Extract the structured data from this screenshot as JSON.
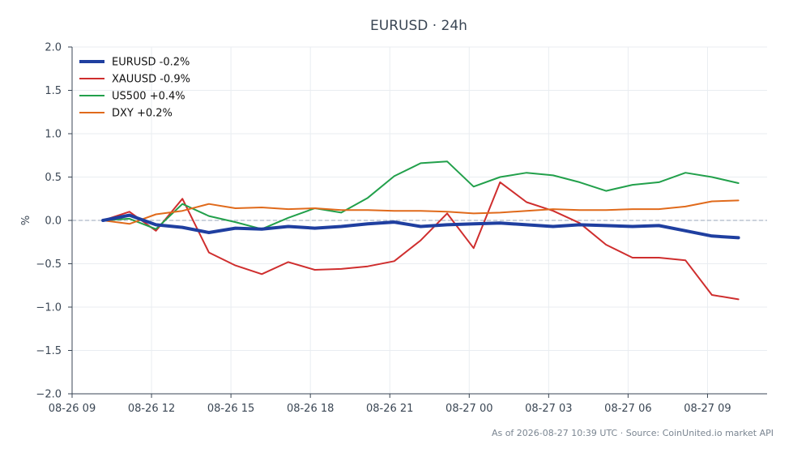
{
  "footer": "As of 2026-08-27 10:39 UTC · Source: CoinUnited.io market API",
  "chart_data": {
    "type": "line",
    "title": "EURUSD · 24h",
    "xlabel": "",
    "ylabel": "%",
    "ylim": [
      -2.0,
      2.0
    ],
    "yticks": [
      -2.0,
      -1.5,
      -1.0,
      -0.5,
      0.0,
      0.5,
      1.0,
      1.5,
      2.0
    ],
    "ytick_labels": [
      "−2.0",
      "−1.5",
      "−1.0",
      "−0.5",
      "0.0",
      "0.5",
      "1.0",
      "1.5",
      "2.0"
    ],
    "xlim": [
      "2026-08-26 09:00",
      "2026-08-27 11:15"
    ],
    "xticks": [
      "2026-08-26 09:00",
      "2026-08-26 12:00",
      "2026-08-26 15:00",
      "2026-08-26 18:00",
      "2026-08-26 21:00",
      "2026-08-27 00:00",
      "2026-08-27 03:00",
      "2026-08-27 06:00",
      "2026-08-27 09:00"
    ],
    "xtick_labels": [
      "08-26 09",
      "08-26 12",
      "08-26 15",
      "08-26 18",
      "08-26 21",
      "08-27 00",
      "08-27 03",
      "08-27 06",
      "08-27 09"
    ],
    "x": [
      "2026-08-26 10:10",
      "2026-08-26 11:10",
      "2026-08-26 12:10",
      "2026-08-26 13:10",
      "2026-08-26 14:10",
      "2026-08-26 15:10",
      "2026-08-26 16:10",
      "2026-08-26 17:10",
      "2026-08-26 18:10",
      "2026-08-26 19:10",
      "2026-08-26 20:10",
      "2026-08-26 21:10",
      "2026-08-26 22:10",
      "2026-08-26 23:10",
      "2026-08-27 00:10",
      "2026-08-27 01:10",
      "2026-08-27 02:10",
      "2026-08-27 03:10",
      "2026-08-27 04:10",
      "2026-08-27 05:10",
      "2026-08-27 06:10",
      "2026-08-27 07:10",
      "2026-08-27 08:10",
      "2026-08-27 09:10",
      "2026-08-27 10:10"
    ],
    "zero_line": true,
    "grid": true,
    "legend_position": "top-left",
    "series": [
      {
        "name": "EURUSD -0.2%",
        "color": "#1f3fa0",
        "width": 4,
        "values": [
          0.0,
          0.06,
          -0.05,
          -0.08,
          -0.14,
          -0.09,
          -0.1,
          -0.07,
          -0.09,
          -0.07,
          -0.04,
          -0.02,
          -0.07,
          -0.05,
          -0.04,
          -0.03,
          -0.05,
          -0.07,
          -0.05,
          -0.06,
          -0.07,
          -0.06,
          -0.12,
          -0.18,
          -0.2
        ]
      },
      {
        "name": "XAUUSD -0.9%",
        "color": "#cf2e2e",
        "width": 2,
        "values": [
          0.0,
          0.1,
          -0.12,
          0.25,
          -0.37,
          -0.52,
          -0.62,
          -0.48,
          -0.57,
          -0.56,
          -0.53,
          -0.47,
          -0.23,
          0.08,
          -0.32,
          0.44,
          0.21,
          0.11,
          -0.03,
          -0.28,
          -0.43,
          -0.43,
          -0.46,
          -0.86,
          -0.91
        ]
      },
      {
        "name": "US500 +0.4%",
        "color": "#22a04b",
        "width": 2,
        "values": [
          0.0,
          0.02,
          -0.1,
          0.19,
          0.05,
          -0.02,
          -0.1,
          0.03,
          0.14,
          0.09,
          0.26,
          0.51,
          0.66,
          0.68,
          0.39,
          0.5,
          0.55,
          0.52,
          0.44,
          0.34,
          0.41,
          0.44,
          0.55,
          0.5,
          0.43
        ]
      },
      {
        "name": "DXY +0.2%",
        "color": "#e06a1b",
        "width": 2,
        "values": [
          0.0,
          -0.04,
          0.07,
          0.11,
          0.19,
          0.14,
          0.15,
          0.13,
          0.14,
          0.12,
          0.12,
          0.11,
          0.11,
          0.1,
          0.08,
          0.09,
          0.11,
          0.13,
          0.12,
          0.12,
          0.13,
          0.13,
          0.16,
          0.22,
          0.23
        ]
      }
    ]
  }
}
